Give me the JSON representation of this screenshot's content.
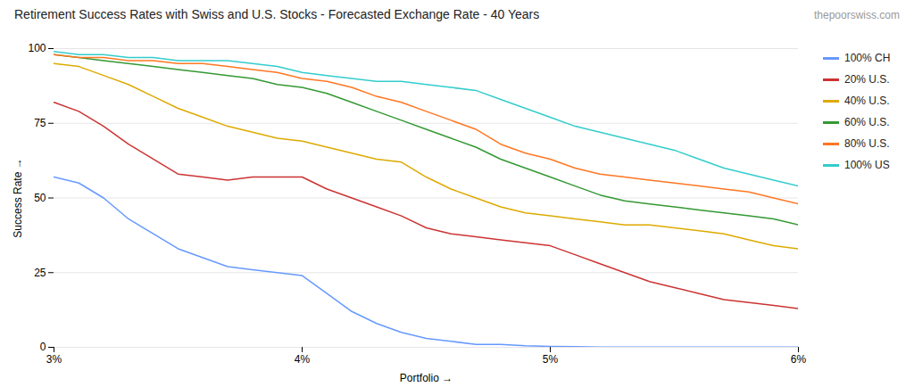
{
  "chart_data": {
    "type": "line",
    "title": "Retirement Success Rates with Swiss and U.S. Stocks - Forecasted Exchange Rate - 40 Years",
    "xlabel": "Portfolio",
    "ylabel": "Success Rate",
    "annotations": [
      "thepoorswiss.com"
    ],
    "x": [
      0.03,
      0.031,
      0.032,
      0.033,
      0.034,
      0.035,
      0.036,
      0.037,
      0.038,
      0.039,
      0.04,
      0.041,
      0.042,
      0.043,
      0.044,
      0.045,
      0.046,
      0.047,
      0.048,
      0.049,
      0.05,
      0.051,
      0.052,
      0.053,
      0.054,
      0.055,
      0.056,
      0.057,
      0.058,
      0.059,
      0.06
    ],
    "xlim": [
      0.03,
      0.06
    ],
    "xticks": [
      {
        "value": 0.03,
        "label": "3%"
      },
      {
        "value": 0.04,
        "label": "4%"
      },
      {
        "value": 0.05,
        "label": "5%"
      },
      {
        "value": 0.06,
        "label": "6%"
      }
    ],
    "ylim": [
      0,
      100
    ],
    "yticks": [
      0,
      25,
      50,
      75,
      100
    ],
    "grid": true,
    "legend": "right",
    "series": [
      {
        "name": "100% CH",
        "color": "#6699ff",
        "values": [
          57,
          55,
          50,
          43,
          38,
          33,
          30,
          27,
          26,
          25,
          24,
          18,
          12,
          8,
          5,
          3,
          2,
          1,
          1,
          0.5,
          0.3,
          0.2,
          0.1,
          0.1,
          0.1,
          0.1,
          0.1,
          0.1,
          0.1,
          0.1,
          0.1
        ]
      },
      {
        "name": "20% U.S.",
        "color": "#cc3333",
        "values": [
          82,
          79,
          74,
          68,
          63,
          58,
          57,
          56,
          57,
          57,
          57,
          53,
          50,
          47,
          44,
          40,
          38,
          37,
          36,
          35,
          34,
          31,
          28,
          25,
          22,
          20,
          18,
          16,
          15,
          14,
          13
        ]
      },
      {
        "name": "40% U.S.",
        "color": "#ddaa00",
        "values": [
          95,
          94,
          91,
          88,
          84,
          80,
          77,
          74,
          72,
          70,
          69,
          67,
          65,
          63,
          62,
          57,
          53,
          50,
          47,
          45,
          44,
          43,
          42,
          41,
          41,
          40,
          39,
          38,
          36,
          34,
          33
        ]
      },
      {
        "name": "60% U.S.",
        "color": "#339933",
        "values": [
          98,
          97,
          96,
          95,
          94,
          93,
          92,
          91,
          90,
          88,
          87,
          85,
          82,
          79,
          76,
          73,
          70,
          67,
          63,
          60,
          57,
          54,
          51,
          49,
          48,
          47,
          46,
          45,
          44,
          43,
          41
        ]
      },
      {
        "name": "80% U.S.",
        "color": "#ff7722",
        "values": [
          98,
          97,
          97,
          96,
          96,
          95,
          95,
          94,
          93,
          92,
          90,
          89,
          87,
          84,
          82,
          79,
          76,
          73,
          68,
          65,
          63,
          60,
          58,
          57,
          56,
          55,
          54,
          53,
          52,
          50,
          48
        ]
      },
      {
        "name": "100% US",
        "color": "#33cccc",
        "values": [
          99,
          98,
          98,
          97,
          97,
          96,
          96,
          96,
          95,
          94,
          92,
          91,
          90,
          89,
          89,
          88,
          87,
          86,
          83,
          80,
          77,
          74,
          72,
          70,
          68,
          66,
          63,
          60,
          58,
          56,
          54
        ]
      }
    ]
  }
}
